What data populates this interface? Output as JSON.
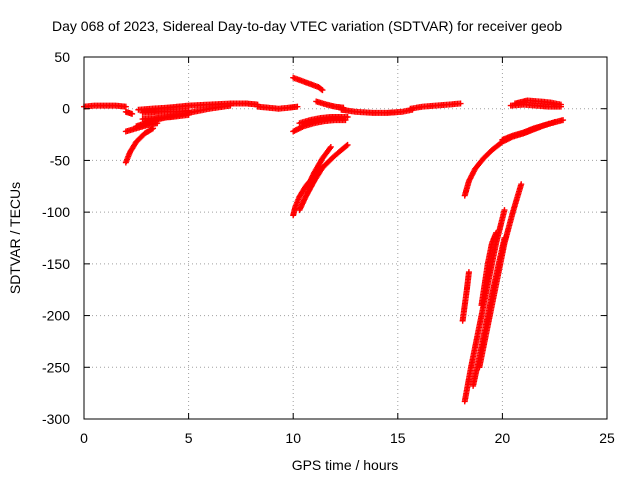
{
  "chart_data": {
    "type": "scatter",
    "title": "Day 068 of 2023, Sidereal Day-to-day VTEC variation (SDTVAR) for receiver geob",
    "xlabel": "GPS time / hours",
    "ylabel": "SDTVAR / TECUs",
    "xlim": [
      0,
      25
    ],
    "ylim": [
      -300,
      50
    ],
    "xticks": [
      0,
      5,
      10,
      15,
      20,
      25
    ],
    "yticks": [
      50,
      0,
      -50,
      -100,
      -150,
      -200,
      -250,
      -300
    ],
    "xtick_labels": [
      "0",
      "5",
      "10",
      "15",
      "20",
      "25"
    ],
    "ytick_labels": [
      "50",
      "0",
      "-50",
      "-100",
      "-150",
      "-200",
      "-250",
      "-300"
    ],
    "grid": true,
    "marker": "+",
    "color": "#ff0000",
    "series": [
      {
        "name": "arc-01",
        "x": [
          0.0,
          0.5,
          1.0,
          1.5,
          2.0
        ],
        "y": [
          2,
          3,
          3,
          3,
          2
        ]
      },
      {
        "name": "arc-02",
        "x": [
          2.0,
          2.3
        ],
        "y": [
          -3,
          -5
        ]
      },
      {
        "name": "arc-03",
        "x": [
          2.0,
          2.2,
          2.5,
          2.9,
          3.3
        ],
        "y": [
          -52,
          -42,
          -32,
          -24,
          -19
        ]
      },
      {
        "name": "arc-04",
        "x": [
          2.0,
          2.5,
          3.0,
          3.5
        ],
        "y": [
          -22,
          -19,
          -16,
          -14
        ]
      },
      {
        "name": "arc-05",
        "x": [
          2.6,
          3.2,
          4.0,
          5.0,
          6.0,
          7.0,
          7.8,
          8.3
        ],
        "y": [
          -1,
          0,
          1,
          3,
          4,
          5,
          5,
          4
        ]
      },
      {
        "name": "arc-06",
        "x": [
          2.5,
          3.2,
          4.0,
          5.0,
          6.0,
          7.0
        ],
        "y": [
          -17,
          -12,
          -8,
          -4,
          0,
          3
        ]
      },
      {
        "name": "arc-07",
        "x": [
          2.8,
          3.5,
          4.2,
          5.0
        ],
        "y": [
          -10,
          -9,
          -8,
          -6
        ]
      },
      {
        "name": "arc-08",
        "x": [
          2.8,
          3.5,
          4.2,
          5.0
        ],
        "y": [
          -4,
          -3,
          -3,
          -2
        ]
      },
      {
        "name": "arc-09",
        "x": [
          8.3,
          8.8,
          9.3,
          9.8,
          10.2
        ],
        "y": [
          2,
          1,
          0,
          1,
          2
        ]
      },
      {
        "name": "arc-10",
        "x": [
          10.0,
          10.4,
          10.8,
          11.2,
          11.4
        ],
        "y": [
          30,
          27,
          24,
          21,
          18
        ]
      },
      {
        "name": "arc-11",
        "x": [
          10.0,
          10.1,
          10.3,
          10.6,
          11.0,
          11.5,
          11.9,
          12.3,
          12.6
        ],
        "y": [
          -103,
          -95,
          -85,
          -75,
          -65,
          -55,
          -47,
          -40,
          -35
        ]
      },
      {
        "name": "arc-12",
        "x": [
          10.3,
          10.6,
          11.0,
          11.4
        ],
        "y": [
          -98,
          -85,
          -70,
          -57
        ]
      },
      {
        "name": "arc-13",
        "x": [
          10.7,
          11.0,
          11.4,
          11.8
        ],
        "y": [
          -75,
          -62,
          -48,
          -37
        ]
      },
      {
        "name": "arc-14",
        "x": [
          10.0,
          10.5,
          11.0,
          11.5,
          12.0,
          12.5
        ],
        "y": [
          -22,
          -17,
          -14,
          -12,
          -11,
          -11
        ]
      },
      {
        "name": "arc-15",
        "x": [
          10.3,
          10.8,
          11.3,
          11.8,
          12.3,
          12.6
        ],
        "y": [
          -14,
          -11,
          -9,
          -8,
          -8,
          -8
        ]
      },
      {
        "name": "arc-16",
        "x": [
          11.1,
          11.6,
          12.0,
          12.4
        ],
        "y": [
          7,
          4,
          2,
          1
        ]
      },
      {
        "name": "arc-17",
        "x": [
          12.3,
          13.0,
          13.8,
          14.5,
          15.2,
          15.7
        ],
        "y": [
          -1,
          -3,
          -4,
          -4,
          -3,
          -1
        ]
      },
      {
        "name": "arc-18",
        "x": [
          15.6,
          16.2,
          16.8,
          17.4,
          18.0
        ],
        "y": [
          0,
          2,
          3,
          4,
          5
        ]
      },
      {
        "name": "arc-19",
        "x": [
          18.2,
          18.4,
          18.7,
          19.1,
          19.5,
          20.0,
          20.5,
          21.0,
          21.5,
          22.0,
          22.5,
          22.9
        ],
        "y": [
          -84,
          -70,
          -58,
          -48,
          -40,
          -32,
          -27,
          -24,
          -20,
          -16,
          -13,
          -11
        ]
      },
      {
        "name": "arc-20",
        "x": [
          20.0,
          20.5,
          21.0,
          21.5,
          22.0,
          22.5
        ],
        "y": [
          -30,
          -26,
          -23,
          -19,
          -16,
          -13
        ]
      },
      {
        "name": "arc-21",
        "x": [
          20.6,
          21.2,
          21.8,
          22.3,
          22.8
        ],
        "y": [
          5,
          8,
          7,
          6,
          4
        ]
      },
      {
        "name": "arc-22",
        "x": [
          20.4,
          21.0,
          21.6,
          22.2,
          22.8
        ],
        "y": [
          3,
          4,
          3,
          2,
          2
        ]
      },
      {
        "name": "arc-23",
        "x": [
          18.1,
          18.2,
          18.3,
          18.4
        ],
        "y": [
          -205,
          -190,
          -175,
          -158
        ]
      },
      {
        "name": "arc-24",
        "x": [
          18.2,
          18.5,
          18.9,
          19.3,
          19.7,
          20.1
        ],
        "y": [
          -283,
          -250,
          -210,
          -170,
          -130,
          -98
        ]
      },
      {
        "name": "arc-25",
        "x": [
          18.6,
          18.9,
          19.2,
          19.5,
          19.8,
          20.1
        ],
        "y": [
          -268,
          -240,
          -210,
          -180,
          -152,
          -125
        ]
      },
      {
        "name": "arc-26",
        "x": [
          18.9,
          19.3,
          19.7,
          20.1,
          20.5,
          20.9
        ],
        "y": [
          -250,
          -210,
          -170,
          -130,
          -100,
          -73
        ]
      },
      {
        "name": "arc-27",
        "x": [
          19.0,
          19.3,
          19.5,
          19.7
        ],
        "y": [
          -190,
          -150,
          -130,
          -120
        ]
      }
    ]
  }
}
